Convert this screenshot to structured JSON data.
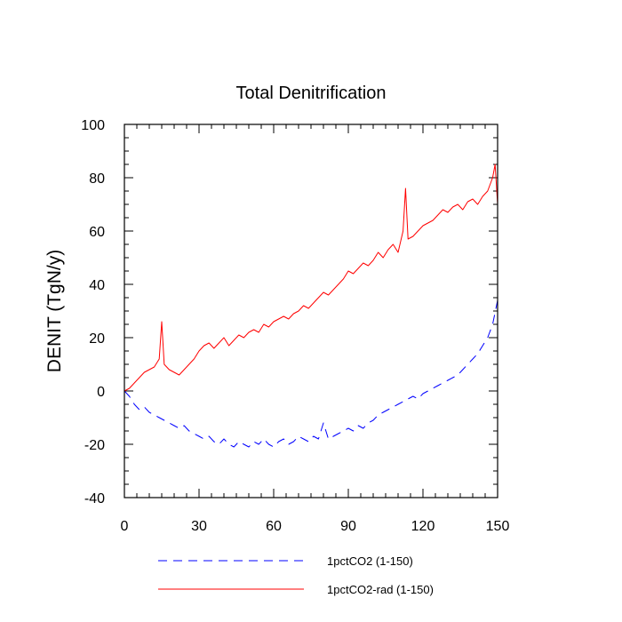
{
  "chart_data": {
    "type": "line",
    "title": "Total Denitrification",
    "xlabel": "",
    "ylabel": "DENIT  (TgN/y)",
    "xlim": [
      0,
      150
    ],
    "ylim": [
      -40,
      100
    ],
    "xticks": [
      "0",
      "30",
      "60",
      "90",
      "120",
      "150"
    ],
    "yticks": [
      "-40",
      "-20",
      "0",
      "20",
      "40",
      "60",
      "80",
      "100"
    ],
    "grid": false,
    "legend_position": "bottom",
    "series": [
      {
        "name": "1pctCO2 (1-150)",
        "color": "#0000ff",
        "style": "dashed",
        "x": [
          0,
          2,
          4,
          6,
          8,
          10,
          12,
          14,
          16,
          18,
          20,
          22,
          24,
          26,
          28,
          30,
          32,
          34,
          36,
          38,
          40,
          42,
          44,
          46,
          48,
          50,
          52,
          54,
          56,
          58,
          60,
          62,
          64,
          66,
          68,
          70,
          72,
          74,
          76,
          78,
          80,
          82,
          84,
          86,
          88,
          90,
          92,
          94,
          96,
          98,
          100,
          102,
          104,
          106,
          108,
          110,
          112,
          114,
          116,
          118,
          120,
          122,
          124,
          126,
          128,
          130,
          132,
          134,
          136,
          138,
          140,
          142,
          144,
          146,
          148,
          150
        ],
        "y": [
          0,
          -2,
          -5,
          -7,
          -6,
          -8,
          -9,
          -10,
          -11,
          -12,
          -13,
          -14,
          -13,
          -15,
          -16,
          -17,
          -18,
          -17,
          -19,
          -20,
          -18,
          -20,
          -21,
          -19,
          -20,
          -21,
          -19,
          -20,
          -18,
          -20,
          -21,
          -19,
          -18,
          -20,
          -19,
          -17,
          -18,
          -19,
          -17,
          -18,
          -12,
          -18,
          -17,
          -16,
          -15,
          -14,
          -15,
          -13,
          -14,
          -12,
          -11,
          -9,
          -8,
          -7,
          -6,
          -5,
          -4,
          -3,
          -2,
          -3,
          -1,
          0,
          1,
          2,
          3,
          4,
          5,
          6,
          8,
          10,
          12,
          14,
          17,
          20,
          25,
          34
        ]
      },
      {
        "name": "1pctCO2-rad (1-150)",
        "color": "#ff0000",
        "style": "solid",
        "x": [
          0,
          2,
          4,
          6,
          8,
          10,
          12,
          14,
          15,
          16,
          18,
          20,
          22,
          24,
          26,
          28,
          30,
          32,
          34,
          36,
          38,
          40,
          42,
          44,
          46,
          48,
          50,
          52,
          54,
          56,
          58,
          60,
          62,
          64,
          66,
          68,
          70,
          72,
          74,
          76,
          78,
          80,
          82,
          84,
          86,
          88,
          90,
          92,
          94,
          96,
          98,
          100,
          102,
          104,
          106,
          108,
          110,
          112,
          113,
          114,
          116,
          118,
          120,
          122,
          124,
          126,
          128,
          130,
          132,
          134,
          136,
          138,
          140,
          142,
          144,
          146,
          148,
          149,
          150
        ],
        "y": [
          0,
          1,
          3,
          5,
          7,
          8,
          9,
          12,
          26,
          10,
          8,
          7,
          6,
          8,
          10,
          12,
          15,
          17,
          18,
          16,
          18,
          20,
          17,
          19,
          21,
          20,
          22,
          23,
          22,
          25,
          24,
          26,
          27,
          28,
          27,
          29,
          30,
          32,
          31,
          33,
          35,
          37,
          36,
          38,
          40,
          42,
          45,
          44,
          46,
          48,
          47,
          49,
          52,
          50,
          53,
          55,
          52,
          60,
          76,
          57,
          58,
          60,
          62,
          63,
          64,
          66,
          68,
          67,
          69,
          70,
          68,
          71,
          72,
          70,
          73,
          75,
          80,
          85,
          70
        ]
      }
    ]
  }
}
